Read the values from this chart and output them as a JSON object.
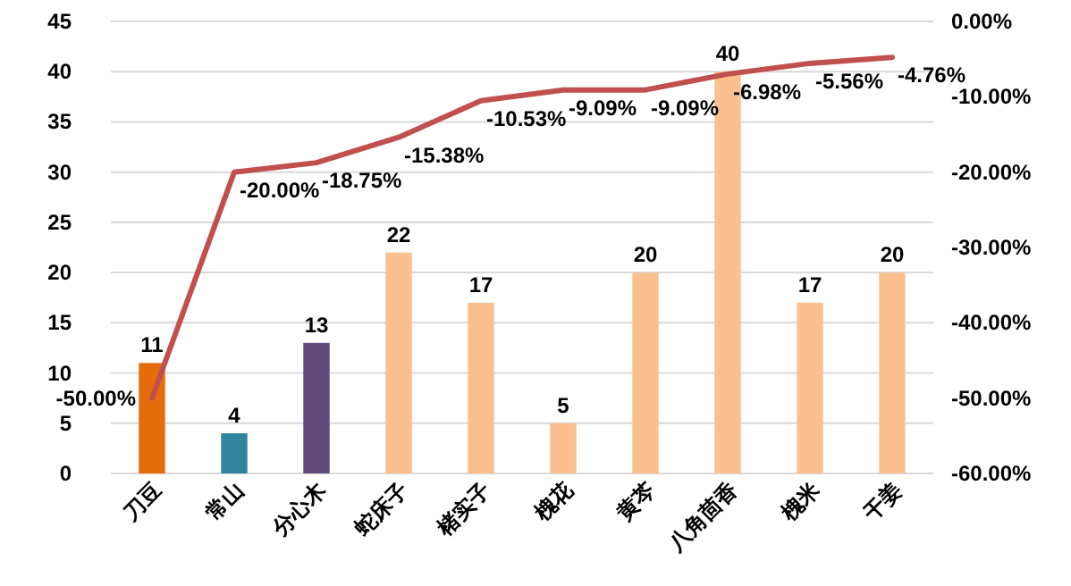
{
  "chart_data": {
    "type": "bar",
    "categories": [
      "刀豆",
      "常山",
      "分心木",
      "蛇床子",
      "楮实子",
      "槐花",
      "黄芩",
      "八角茴香",
      "槐米",
      "干姜"
    ],
    "series": [
      {
        "colors": [
          "#e46c0a",
          "#31859c",
          "#604a7b",
          "#fac090",
          "#fac090",
          "#fac090",
          "#fac090",
          "#fac090",
          "#fac090",
          "#fac090"
        ],
        "values": [
          11,
          4,
          13,
          22,
          17,
          5,
          20,
          40,
          17,
          20
        ]
      },
      {
        "type": "line",
        "axis": "y2",
        "color": "#c0504d",
        "values": [
          -50,
          -20,
          -18.75,
          -15.38,
          -10.53,
          -9.09,
          -9.09,
          -6.98,
          -5.56,
          -4.76
        ],
        "value_labels": [
          "-50.00%",
          "-20.00%",
          "-18.75%",
          "-15.38%",
          "-10.53%",
          "-9.09%",
          "-9.09%",
          "-6.98%",
          "-5.56%",
          "-4.76%"
        ]
      }
    ],
    "ylim": [
      0,
      45
    ],
    "yticks": [
      0,
      5,
      10,
      15,
      20,
      25,
      30,
      35,
      40,
      45
    ],
    "y2lim": [
      -60,
      0
    ],
    "y2ticks": [
      {
        "value": 0,
        "label": "0.00%"
      },
      {
        "value": -10,
        "label": "-10.00%"
      },
      {
        "value": -20,
        "label": "-20.00%"
      },
      {
        "value": -30,
        "label": "-30.00%"
      },
      {
        "value": -40,
        "label": "-40.00%"
      },
      {
        "value": -50,
        "label": "-50.00%"
      },
      {
        "value": -60,
        "label": "-60.00%"
      }
    ],
    "grid": "y",
    "data_labels": true
  }
}
